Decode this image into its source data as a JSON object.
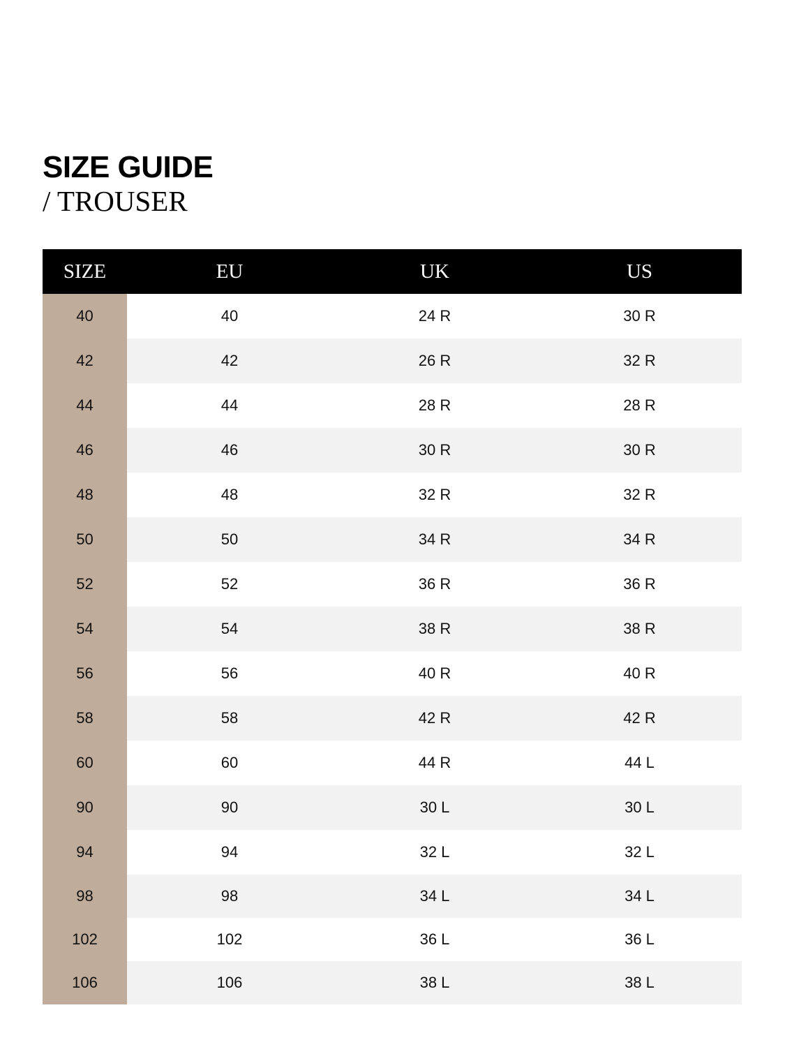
{
  "title": "SIZE GUIDE",
  "subtitle": "/ TROUSER",
  "colors": {
    "header_bg": "#000000",
    "size_column_bg": "#bfac9a",
    "alt_row_bg": "#f2f2f2"
  },
  "table": {
    "headers": [
      "SIZE",
      "EU",
      "UK",
      "US"
    ],
    "rows": [
      [
        "40",
        "40",
        "24 R",
        "30 R"
      ],
      [
        "42",
        "42",
        "26 R",
        "32 R"
      ],
      [
        "44",
        "44",
        "28 R",
        "28 R"
      ],
      [
        "46",
        "46",
        "30 R",
        "30 R"
      ],
      [
        "48",
        "48",
        "32 R",
        "32 R"
      ],
      [
        "50",
        "50",
        "34 R",
        "34 R"
      ],
      [
        "52",
        "52",
        "36 R",
        "36 R"
      ],
      [
        "54",
        "54",
        "38 R",
        "38 R"
      ],
      [
        "56",
        "56",
        "40 R",
        "40 R"
      ],
      [
        "58",
        "58",
        "42 R",
        "42 R"
      ],
      [
        "60",
        "60",
        "44 R",
        "44 L"
      ],
      [
        "90",
        "90",
        "30 L",
        "30 L"
      ],
      [
        "94",
        "94",
        "32 L",
        "32 L"
      ],
      [
        "98",
        "98",
        "34 L",
        "34 L"
      ],
      [
        "102",
        "102",
        "36 L",
        "36 L"
      ],
      [
        "106",
        "106",
        "38 L",
        "38 L"
      ]
    ]
  }
}
